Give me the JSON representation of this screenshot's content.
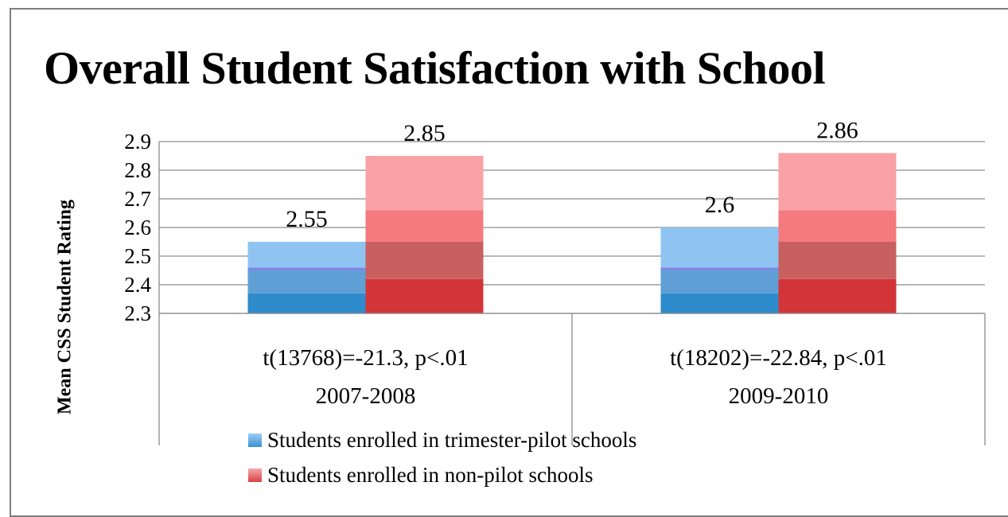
{
  "chart_data": {
    "type": "bar",
    "title": "Overall Student Satisfaction with School",
    "xlabel": "",
    "ylabel": "Mean CSS Student Rating",
    "ylim": [
      2.3,
      2.9
    ],
    "yticks": [
      "2.3",
      "2.4",
      "2.5",
      "2.6",
      "2.7",
      "2.8",
      "2.9"
    ],
    "grid": true,
    "legend_position": "bottom",
    "categories": [
      {
        "stat": "t(13768)=-21.3, p<.01",
        "year": "2007-2008"
      },
      {
        "stat": "t(18202)=-22.84, p<.01",
        "year": "2009-2010"
      }
    ],
    "series": [
      {
        "name": "Students enrolled in trimester-pilot schools",
        "values": [
          2.55,
          2.6
        ],
        "labels": [
          "2.55",
          "2.6"
        ],
        "color": "#8fc4f2"
      },
      {
        "name": "Students enrolled in non-pilot schools",
        "values": [
          2.85,
          2.86
        ],
        "labels": [
          "2.85",
          "2.86"
        ],
        "color": "#f68e92"
      }
    ]
  }
}
